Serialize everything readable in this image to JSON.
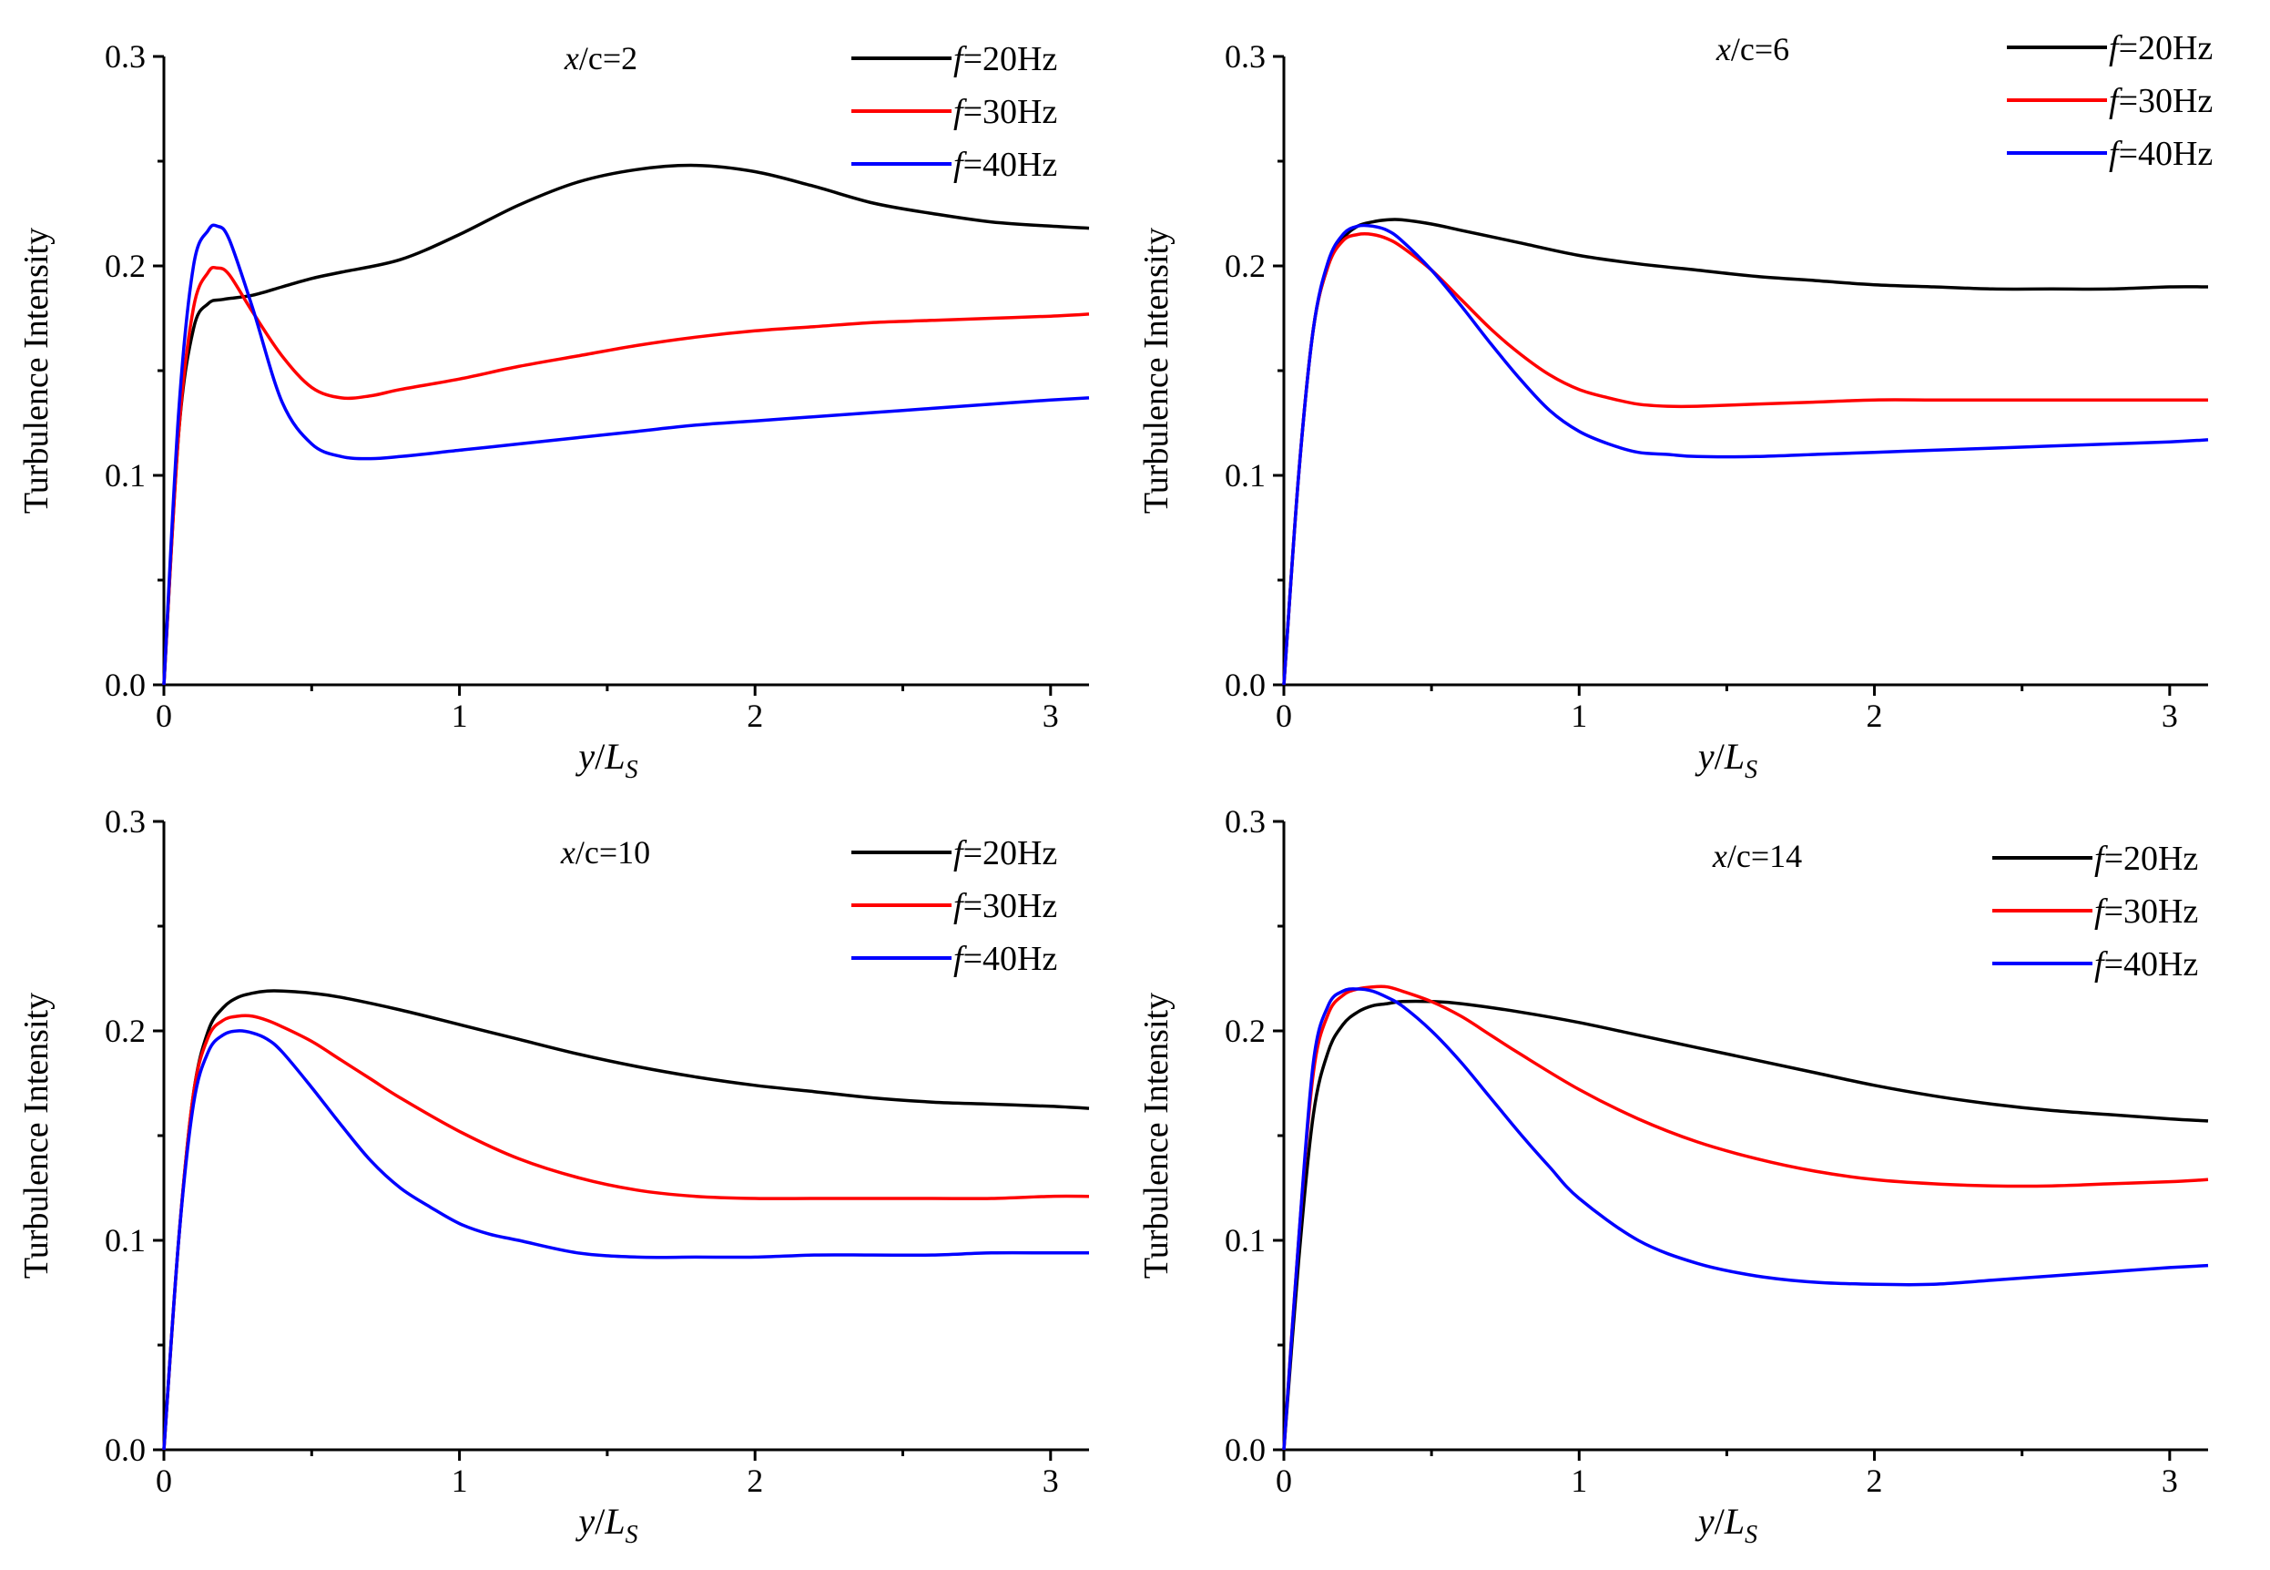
{
  "chart_data": [
    {
      "type": "line",
      "title": "x/c=2",
      "title_parts": {
        "var": "x",
        "rest": "/c=2"
      },
      "xlabel": "y/Ls",
      "xlabel_parts": {
        "a": "y",
        "b": "/",
        "c": "L",
        "sub": "S"
      },
      "ylabel": "Turbulence Intensity",
      "xlim": [
        0,
        3.13
      ],
      "ylim": [
        0,
        0.3
      ],
      "xticks": [
        "0",
        "1",
        "2",
        "3"
      ],
      "yticks": [
        "0.0",
        "0.1",
        "0.2",
        "0.3"
      ],
      "series": [
        {
          "name": "f=20Hz",
          "label_var": "f",
          "label_rest": "=20Hz",
          "color": "#000000",
          "x": [
            0,
            0.05,
            0.1,
            0.15,
            0.2,
            0.3,
            0.4,
            0.5,
            0.6,
            0.8,
            1.0,
            1.2,
            1.4,
            1.6,
            1.8,
            2.0,
            2.2,
            2.4,
            2.6,
            2.8,
            3.0,
            3.13
          ],
          "y": [
            0,
            0.12,
            0.17,
            0.182,
            0.184,
            0.186,
            0.19,
            0.194,
            0.197,
            0.203,
            0.215,
            0.229,
            0.24,
            0.246,
            0.248,
            0.245,
            0.238,
            0.23,
            0.225,
            0.221,
            0.219,
            0.218
          ]
        },
        {
          "name": "f=30Hz",
          "label_var": "f",
          "label_rest": "=30Hz",
          "color": "#ff0000",
          "x": [
            0,
            0.05,
            0.1,
            0.15,
            0.18,
            0.22,
            0.3,
            0.4,
            0.5,
            0.6,
            0.7,
            0.8,
            1.0,
            1.2,
            1.4,
            1.6,
            1.8,
            2.0,
            2.2,
            2.4,
            2.6,
            2.8,
            3.0,
            3.13
          ],
          "y": [
            0,
            0.12,
            0.18,
            0.197,
            0.199,
            0.196,
            0.178,
            0.157,
            0.142,
            0.137,
            0.138,
            0.141,
            0.146,
            0.152,
            0.157,
            0.162,
            0.166,
            0.169,
            0.171,
            0.173,
            0.174,
            0.175,
            0.176,
            0.177
          ]
        },
        {
          "name": "f=40Hz",
          "label_var": "f",
          "label_rest": "=40Hz",
          "color": "#0000ff",
          "x": [
            0,
            0.05,
            0.1,
            0.15,
            0.18,
            0.22,
            0.3,
            0.4,
            0.5,
            0.6,
            0.7,
            0.8,
            1.0,
            1.2,
            1.4,
            1.6,
            1.8,
            2.0,
            2.2,
            2.4,
            2.6,
            2.8,
            3.0,
            3.13
          ],
          "y": [
            0,
            0.13,
            0.2,
            0.217,
            0.219,
            0.213,
            0.18,
            0.135,
            0.115,
            0.109,
            0.108,
            0.109,
            0.112,
            0.115,
            0.118,
            0.121,
            0.124,
            0.126,
            0.128,
            0.13,
            0.132,
            0.134,
            0.136,
            0.137
          ]
        }
      ]
    },
    {
      "type": "line",
      "title": "x/c=6",
      "title_parts": {
        "var": "x",
        "rest": "/c=6"
      },
      "xlabel": "y/Ls",
      "xlabel_parts": {
        "a": "y",
        "b": "/",
        "c": "L",
        "sub": "S"
      },
      "ylabel": "Turbulence Intensity",
      "xlim": [
        0,
        3.13
      ],
      "ylim": [
        0,
        0.3
      ],
      "xticks": [
        "0",
        "1",
        "2",
        "3"
      ],
      "yticks": [
        "0.0",
        "0.1",
        "0.2",
        "0.3"
      ],
      "series": [
        {
          "name": "f=20Hz",
          "label_var": "f",
          "label_rest": "=20Hz",
          "color": "#000000",
          "x": [
            0,
            0.05,
            0.1,
            0.15,
            0.2,
            0.25,
            0.3,
            0.35,
            0.4,
            0.5,
            0.6,
            0.8,
            1.0,
            1.2,
            1.4,
            1.6,
            1.8,
            2.0,
            2.2,
            2.4,
            2.6,
            2.8,
            3.0,
            3.13
          ],
          "y": [
            0,
            0.1,
            0.17,
            0.2,
            0.213,
            0.219,
            0.221,
            0.222,
            0.222,
            0.22,
            0.217,
            0.211,
            0.205,
            0.201,
            0.198,
            0.195,
            0.193,
            0.191,
            0.19,
            0.189,
            0.189,
            0.189,
            0.19,
            0.19
          ]
        },
        {
          "name": "f=30Hz",
          "label_var": "f",
          "label_rest": "=30Hz",
          "color": "#ff0000",
          "x": [
            0,
            0.05,
            0.1,
            0.15,
            0.2,
            0.25,
            0.3,
            0.35,
            0.4,
            0.5,
            0.6,
            0.7,
            0.8,
            0.9,
            1.0,
            1.1,
            1.2,
            1.3,
            1.4,
            1.6,
            1.8,
            2.0,
            2.2,
            2.4,
            2.6,
            2.8,
            3.0,
            3.13
          ],
          "y": [
            0,
            0.1,
            0.17,
            0.2,
            0.212,
            0.215,
            0.215,
            0.213,
            0.209,
            0.198,
            0.184,
            0.17,
            0.158,
            0.148,
            0.141,
            0.137,
            0.134,
            0.133,
            0.133,
            0.134,
            0.135,
            0.136,
            0.136,
            0.136,
            0.136,
            0.136,
            0.136,
            0.136
          ]
        },
        {
          "name": "f=40Hz",
          "label_var": "f",
          "label_rest": "=40Hz",
          "color": "#0000ff",
          "x": [
            0,
            0.05,
            0.1,
            0.15,
            0.2,
            0.25,
            0.3,
            0.35,
            0.4,
            0.5,
            0.6,
            0.7,
            0.8,
            0.9,
            1.0,
            1.1,
            1.2,
            1.3,
            1.4,
            1.6,
            1.8,
            2.0,
            2.2,
            2.4,
            2.6,
            2.8,
            3.0,
            3.13
          ],
          "y": [
            0,
            0.1,
            0.17,
            0.202,
            0.215,
            0.219,
            0.219,
            0.217,
            0.212,
            0.198,
            0.181,
            0.163,
            0.146,
            0.131,
            0.121,
            0.115,
            0.111,
            0.11,
            0.109,
            0.109,
            0.11,
            0.111,
            0.112,
            0.113,
            0.114,
            0.115,
            0.116,
            0.117
          ]
        }
      ]
    },
    {
      "type": "line",
      "title": "x/c=10",
      "title_parts": {
        "var": "x",
        "rest": "/c=10"
      },
      "xlabel": "y/Ls",
      "xlabel_parts": {
        "a": "y",
        "b": "/",
        "c": "L",
        "sub": "S"
      },
      "ylabel": "Turbulence Intensity",
      "xlim": [
        0,
        3.13
      ],
      "ylim": [
        0,
        0.3
      ],
      "xticks": [
        "0",
        "1",
        "2",
        "3"
      ],
      "yticks": [
        "0.0",
        "0.1",
        "0.2",
        "0.3"
      ],
      "series": [
        {
          "name": "f=20Hz",
          "label_var": "f",
          "label_rest": "=20Hz",
          "color": "#000000",
          "x": [
            0,
            0.05,
            0.1,
            0.15,
            0.2,
            0.25,
            0.3,
            0.35,
            0.4,
            0.5,
            0.6,
            0.8,
            1.0,
            1.2,
            1.4,
            1.6,
            1.8,
            2.0,
            2.2,
            2.4,
            2.6,
            2.8,
            3.0,
            3.13
          ],
          "y": [
            0,
            0.1,
            0.17,
            0.2,
            0.211,
            0.216,
            0.218,
            0.219,
            0.219,
            0.218,
            0.216,
            0.21,
            0.203,
            0.196,
            0.189,
            0.183,
            0.178,
            0.174,
            0.171,
            0.168,
            0.166,
            0.165,
            0.164,
            0.163
          ]
        },
        {
          "name": "f=30Hz",
          "label_var": "f",
          "label_rest": "=30Hz",
          "color": "#ff0000",
          "x": [
            0,
            0.05,
            0.1,
            0.15,
            0.2,
            0.25,
            0.3,
            0.35,
            0.4,
            0.5,
            0.6,
            0.7,
            0.8,
            1.0,
            1.2,
            1.4,
            1.6,
            1.8,
            2.0,
            2.2,
            2.4,
            2.6,
            2.8,
            3.0,
            3.13
          ],
          "y": [
            0,
            0.1,
            0.17,
            0.197,
            0.205,
            0.207,
            0.207,
            0.205,
            0.202,
            0.195,
            0.186,
            0.177,
            0.168,
            0.152,
            0.139,
            0.13,
            0.124,
            0.121,
            0.12,
            0.12,
            0.12,
            0.12,
            0.12,
            0.121,
            0.121
          ]
        },
        {
          "name": "f=40Hz",
          "label_var": "f",
          "label_rest": "=40Hz",
          "color": "#0000ff",
          "x": [
            0,
            0.05,
            0.1,
            0.15,
            0.2,
            0.25,
            0.3,
            0.35,
            0.4,
            0.5,
            0.6,
            0.7,
            0.8,
            0.9,
            1.0,
            1.1,
            1.2,
            1.4,
            1.6,
            1.8,
            2.0,
            2.2,
            2.4,
            2.6,
            2.8,
            3.0,
            3.13
          ],
          "y": [
            0,
            0.1,
            0.165,
            0.19,
            0.198,
            0.2,
            0.199,
            0.196,
            0.19,
            0.173,
            0.155,
            0.138,
            0.125,
            0.116,
            0.108,
            0.103,
            0.1,
            0.094,
            0.092,
            0.092,
            0.092,
            0.093,
            0.093,
            0.093,
            0.094,
            0.094,
            0.094
          ]
        }
      ]
    },
    {
      "type": "line",
      "title": "x/c=14",
      "title_parts": {
        "var": "x",
        "rest": "/c=14"
      },
      "xlabel": "y/Ls",
      "xlabel_parts": {
        "a": "y",
        "b": "/",
        "c": "L",
        "sub": "S"
      },
      "ylabel": "Turbulence Intensity",
      "xlim": [
        0,
        3.13
      ],
      "ylim": [
        0,
        0.3
      ],
      "xticks": [
        "0",
        "1",
        "2",
        "3"
      ],
      "yticks": [
        "0.0",
        "0.1",
        "0.2",
        "0.3"
      ],
      "series": [
        {
          "name": "f=20Hz",
          "label_var": "f",
          "label_rest": "=20Hz",
          "color": "#000000",
          "x": [
            0,
            0.05,
            0.1,
            0.15,
            0.2,
            0.25,
            0.3,
            0.35,
            0.4,
            0.5,
            0.6,
            0.8,
            1.0,
            1.2,
            1.4,
            1.6,
            1.8,
            2.0,
            2.2,
            2.4,
            2.6,
            2.8,
            3.0,
            3.13
          ],
          "y": [
            0,
            0.09,
            0.16,
            0.19,
            0.203,
            0.209,
            0.212,
            0.213,
            0.214,
            0.214,
            0.213,
            0.209,
            0.204,
            0.198,
            0.192,
            0.186,
            0.18,
            0.174,
            0.169,
            0.165,
            0.162,
            0.16,
            0.158,
            0.157
          ]
        },
        {
          "name": "f=30Hz",
          "label_var": "f",
          "label_rest": "=30Hz",
          "color": "#ff0000",
          "x": [
            0,
            0.05,
            0.1,
            0.15,
            0.2,
            0.25,
            0.3,
            0.35,
            0.4,
            0.5,
            0.6,
            0.7,
            0.8,
            1.0,
            1.2,
            1.4,
            1.6,
            1.8,
            2.0,
            2.2,
            2.4,
            2.6,
            2.8,
            3.0,
            3.13
          ],
          "y": [
            0,
            0.1,
            0.18,
            0.208,
            0.217,
            0.22,
            0.221,
            0.221,
            0.219,
            0.214,
            0.207,
            0.198,
            0.189,
            0.172,
            0.158,
            0.147,
            0.139,
            0.133,
            0.129,
            0.127,
            0.126,
            0.126,
            0.127,
            0.128,
            0.129
          ]
        },
        {
          "name": "f=40Hz",
          "label_var": "f",
          "label_rest": "=40Hz",
          "color": "#0000ff",
          "x": [
            0,
            0.05,
            0.1,
            0.15,
            0.2,
            0.25,
            0.3,
            0.35,
            0.4,
            0.5,
            0.6,
            0.7,
            0.8,
            0.9,
            1.0,
            1.2,
            1.4,
            1.6,
            1.8,
            2.0,
            2.2,
            2.4,
            2.6,
            2.8,
            3.0,
            3.13
          ],
          "y": [
            0,
            0.1,
            0.185,
            0.212,
            0.219,
            0.22,
            0.219,
            0.216,
            0.212,
            0.2,
            0.185,
            0.168,
            0.151,
            0.135,
            0.12,
            0.1,
            0.089,
            0.083,
            0.08,
            0.079,
            0.079,
            0.081,
            0.083,
            0.085,
            0.087,
            0.088
          ]
        }
      ]
    }
  ]
}
